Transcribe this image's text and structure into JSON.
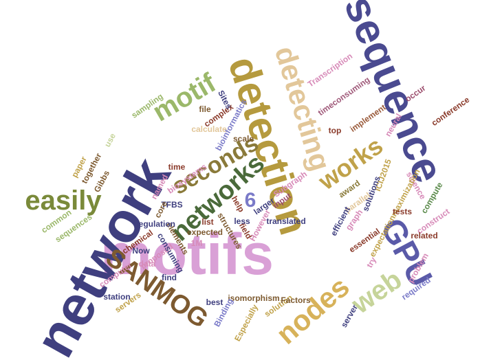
{
  "words": [
    {
      "text": "motifs",
      "color": "#d9a0d6"
    },
    {
      "text": "network",
      "color": "#3f3f7f"
    },
    {
      "text": "sequence",
      "color": "#4a4a90"
    },
    {
      "text": "detection",
      "color": "#b59a3e"
    },
    {
      "text": "SANMOG",
      "color": "#7d5a30"
    },
    {
      "text": "nodes",
      "color": "#d7b25a"
    },
    {
      "text": "GPU",
      "color": "#5a5aa8"
    },
    {
      "text": "detecting",
      "color": "#e2c79a"
    },
    {
      "text": "networks",
      "color": "#4a6a3a"
    },
    {
      "text": "seconds",
      "color": "#8a7a3a"
    },
    {
      "text": "web",
      "color": "#c6d49a"
    },
    {
      "text": "works",
      "color": "#c0a24a"
    },
    {
      "text": "easily",
      "color": "#7a8a3a"
    },
    {
      "text": "motif",
      "color": "#9bb86a"
    },
    {
      "text": "6",
      "color": "#7a7ac8"
    },
    {
      "text": "Transcription",
      "color": "#d78ab8"
    },
    {
      "text": "timeconsuming",
      "color": "#a05a7a"
    },
    {
      "text": "conference",
      "color": "#8a3a2a"
    },
    {
      "text": "occur",
      "color": "#9a4a6a"
    },
    {
      "text": "neural",
      "color": "#d78ab8"
    },
    {
      "text": "implement",
      "color": "#9a5a3a"
    },
    {
      "text": "top",
      "color": "#8a3a2a"
    },
    {
      "text": "ICIJ2015",
      "color": "#c0a24a"
    },
    {
      "text": "solutions",
      "color": "#3f3f7f"
    },
    {
      "text": "award",
      "color": "#8a7a3a"
    },
    {
      "text": "parallel",
      "color": "#e2c79a"
    },
    {
      "text": "science",
      "color": "#d78ab8"
    },
    {
      "text": "expectationmaximization",
      "color": "#c0a24a"
    },
    {
      "text": "compute",
      "color": "#5a8a4a"
    },
    {
      "text": "tests",
      "color": "#8a3a2a"
    },
    {
      "text": "construct",
      "color": "#d78ab8"
    },
    {
      "text": "related",
      "color": "#8a3a2a"
    },
    {
      "text": "efficient",
      "color": "#3f3f7f"
    },
    {
      "text": "graph",
      "color": "#d78ab8"
    },
    {
      "text": "essential",
      "color": "#8a3a2a"
    },
    {
      "text": "problem",
      "color": "#d78ab8"
    },
    {
      "text": "try",
      "color": "#d78ab8"
    },
    {
      "text": "required",
      "color": "#7a7ac8"
    },
    {
      "text": "server",
      "color": "#3f3f7f"
    },
    {
      "text": "solution",
      "color": "#c0a24a"
    },
    {
      "text": "Factors",
      "color": "#7d5a30"
    },
    {
      "text": "isomorphism",
      "color": "#7d5a30"
    },
    {
      "text": "Especially",
      "color": "#c0a24a"
    },
    {
      "text": "Binding",
      "color": "#7a7ac8"
    },
    {
      "text": "best",
      "color": "#3f3f7f"
    },
    {
      "text": "servers",
      "color": "#c0a24a"
    },
    {
      "text": "station",
      "color": "#3f3f7f"
    },
    {
      "text": "computer",
      "color": "#d78ab8"
    },
    {
      "text": "find",
      "color": "#3f3f7f"
    },
    {
      "text": "data",
      "color": "#d78ab8"
    },
    {
      "text": "proposed",
      "color": "#d78ab8"
    },
    {
      "text": "Now",
      "color": "#3f3f7f"
    },
    {
      "text": "chemical",
      "color": "#8a3a2a"
    },
    {
      "text": "consuming",
      "color": "#3f3f7f"
    },
    {
      "text": "elements",
      "color": "#7d5a30"
    },
    {
      "text": "1M",
      "color": "#d78ab8"
    },
    {
      "text": "expected",
      "color": "#7d5a30"
    },
    {
      "text": "regulation",
      "color": "#3f3f7f"
    },
    {
      "text": "list",
      "color": "#8a3a2a"
    },
    {
      "text": "structures",
      "color": "#7d5a30"
    },
    {
      "text": "field",
      "color": "#8a3a2a"
    },
    {
      "text": "less",
      "color": "#3f3f7f"
    },
    {
      "text": "However",
      "color": "#d78ab8"
    },
    {
      "text": "translated",
      "color": "#3f3f7f"
    },
    {
      "text": "help",
      "color": "#8a3a2a"
    },
    {
      "text": "larger",
      "color": "#3f3f7f"
    },
    {
      "text": "input",
      "color": "#9a4a6a"
    },
    {
      "text": "Subgraph",
      "color": "#d78ab8"
    },
    {
      "text": "TFBS",
      "color": "#3f3f7f"
    },
    {
      "text": "core",
      "color": "#7d5a30"
    },
    {
      "text": "named",
      "color": "#d78ab8"
    },
    {
      "text": "biosystems",
      "color": "#d78ab8"
    },
    {
      "text": "time",
      "color": "#8a3a2a"
    },
    {
      "text": "scale",
      "color": "#7d5a30"
    },
    {
      "text": "bioinformatics",
      "color": "#7a7ac8"
    },
    {
      "text": "complex",
      "color": "#8a3a2a"
    },
    {
      "text": "file",
      "color": "#7d5a30"
    },
    {
      "text": "Sites",
      "color": "#3f3f7f"
    },
    {
      "text": "calculate",
      "color": "#e2c79a"
    },
    {
      "text": "sampling",
      "color": "#9bb86a"
    },
    {
      "text": "use",
      "color": "#c6d49a"
    },
    {
      "text": "paper",
      "color": "#c0a24a"
    },
    {
      "text": "together",
      "color": "#7d5a30"
    },
    {
      "text": "Gibbs",
      "color": "#7d5a30"
    },
    {
      "text": "common",
      "color": "#9bb86a"
    },
    {
      "text": "sequences",
      "color": "#9bb86a"
    }
  ]
}
